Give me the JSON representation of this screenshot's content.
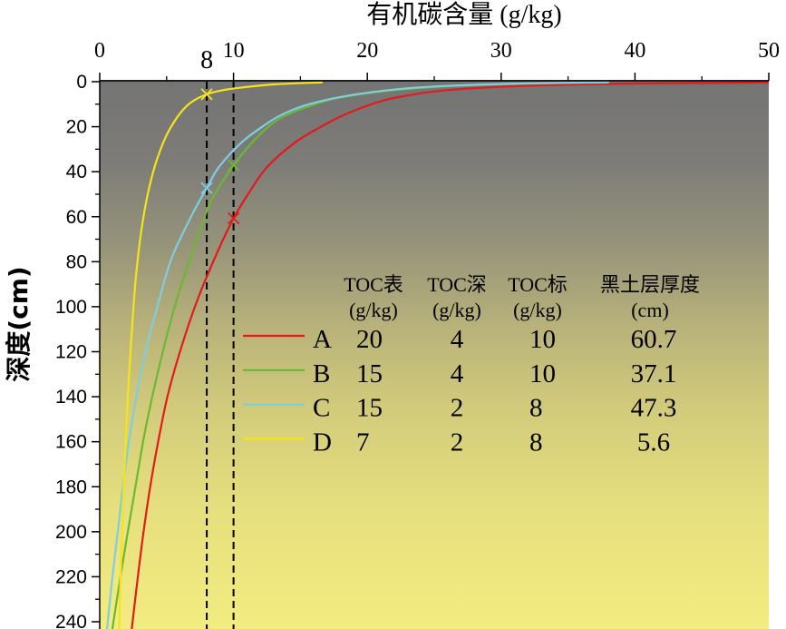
{
  "chart_data": {
    "type": "line",
    "xlabel": "有机碳含量 (g/kg)",
    "ylabel": "深度(cm)",
    "x_axis_top": true,
    "y_inverted": true,
    "xlim": [
      0,
      50
    ],
    "ylim": [
      0,
      240
    ],
    "x_ticks": [
      0,
      10,
      20,
      30,
      40,
      50
    ],
    "x_tick_labels": [
      "0",
      "10",
      "20",
      "30",
      "40",
      "50"
    ],
    "extra_x_labels": [
      {
        "x": 8,
        "label": "8"
      }
    ],
    "y_ticks": [
      0,
      20,
      40,
      60,
      80,
      100,
      120,
      140,
      160,
      180,
      200,
      220,
      240
    ],
    "y_tick_labels": [
      "0",
      "20",
      "40",
      "60",
      "80",
      "100",
      "120",
      "140",
      "160",
      "180",
      "200",
      "220",
      "240"
    ],
    "reference_lines": [
      {
        "x": 8,
        "dashed": true,
        "color": "#000000"
      },
      {
        "x": 10,
        "dashed": true,
        "color": "#000000"
      }
    ],
    "legend_position": "center-right",
    "series": [
      {
        "name": "A",
        "color": "#e31a1c",
        "marker": [
          10,
          60.7
        ],
        "points": [
          [
            50,
            0.3
          ],
          [
            40,
            0.8
          ],
          [
            34,
            1.4
          ],
          [
            29.5,
            2.4
          ],
          [
            25.5,
            4
          ],
          [
            21.8,
            7.5
          ],
          [
            19.6,
            11.5
          ],
          [
            18,
            15.5
          ],
          [
            16.7,
            19.5
          ],
          [
            14.6,
            27
          ],
          [
            12.5,
            38
          ],
          [
            11.3,
            48
          ],
          [
            10,
            60.7
          ],
          [
            8.7,
            77
          ],
          [
            7.3,
            97
          ],
          [
            6.1,
            118
          ],
          [
            5.1,
            139
          ],
          [
            4.4,
            159
          ],
          [
            3.8,
            179
          ],
          [
            3.3,
            199
          ],
          [
            2.85,
            220
          ],
          [
            2.4,
            243
          ]
        ]
      },
      {
        "name": "B",
        "color": "#6cb832",
        "marker": [
          10,
          37.1
        ],
        "points": [
          [
            36,
            0.4
          ],
          [
            28,
            1.5
          ],
          [
            22.5,
            3.5
          ],
          [
            18,
            7
          ],
          [
            15.6,
            11
          ],
          [
            13.9,
            15
          ],
          [
            12.8,
            19
          ],
          [
            11.4,
            27
          ],
          [
            10,
            37.1
          ],
          [
            8.7,
            49
          ],
          [
            7.9,
            59
          ],
          [
            6.8,
            78
          ],
          [
            5.7,
            98
          ],
          [
            4.8,
            118
          ],
          [
            4.0,
            138
          ],
          [
            3.3,
            158
          ],
          [
            2.7,
            179
          ],
          [
            2.1,
            200
          ],
          [
            1.55,
            220
          ],
          [
            0.95,
            243
          ]
        ]
      },
      {
        "name": "C",
        "color": "#7fcde0",
        "marker": [
          8,
          47.3
        ],
        "points": [
          [
            38,
            0.3
          ],
          [
            30,
            1
          ],
          [
            24,
            2.5
          ],
          [
            20.5,
            4.5
          ],
          [
            17.4,
            7.5
          ],
          [
            15.1,
            11
          ],
          [
            13.5,
            15
          ],
          [
            12.4,
            19
          ],
          [
            10.6,
            27
          ],
          [
            8.9,
            38
          ],
          [
            8,
            47.3
          ],
          [
            7.0,
            58
          ],
          [
            5.4,
            78
          ],
          [
            4.4,
            98
          ],
          [
            3.5,
            118
          ],
          [
            2.8,
            138
          ],
          [
            2.2,
            159
          ],
          [
            1.75,
            179
          ],
          [
            1.35,
            200
          ],
          [
            0.95,
            220
          ],
          [
            0.55,
            243
          ]
        ]
      },
      {
        "name": "D",
        "color": "#f5e41a",
        "marker": [
          8,
          5.6
        ],
        "points": [
          [
            16.6,
            0.3
          ],
          [
            13,
            1.2
          ],
          [
            10.6,
            2.6
          ],
          [
            9,
            4
          ],
          [
            8,
            5.6
          ],
          [
            7,
            8.5
          ],
          [
            6.3,
            12
          ],
          [
            5.6,
            17.5
          ],
          [
            4.9,
            25
          ],
          [
            4.2,
            36
          ],
          [
            3.7,
            47
          ],
          [
            3.3,
            59
          ],
          [
            3.0,
            71
          ],
          [
            2.75,
            84
          ],
          [
            2.55,
            98
          ],
          [
            2.35,
            115
          ],
          [
            2.15,
            135
          ],
          [
            1.95,
            158
          ],
          [
            1.78,
            182
          ],
          [
            1.62,
            208
          ],
          [
            1.45,
            243
          ]
        ]
      }
    ],
    "legend_table": {
      "headers": [
        [
          "TOC表",
          "(g/kg)"
        ],
        [
          "TOC深",
          "(g/kg)"
        ],
        [
          "TOC标",
          "(g/kg)"
        ],
        [
          "黑土层厚度",
          "(cm)"
        ]
      ],
      "rows": [
        [
          "20",
          "4",
          "10",
          "60.7"
        ],
        [
          "15",
          "4",
          "10",
          "37.1"
        ],
        [
          "15",
          "2",
          "8",
          "47.3"
        ],
        [
          "7",
          "2",
          "8",
          "5.6"
        ]
      ]
    }
  }
}
